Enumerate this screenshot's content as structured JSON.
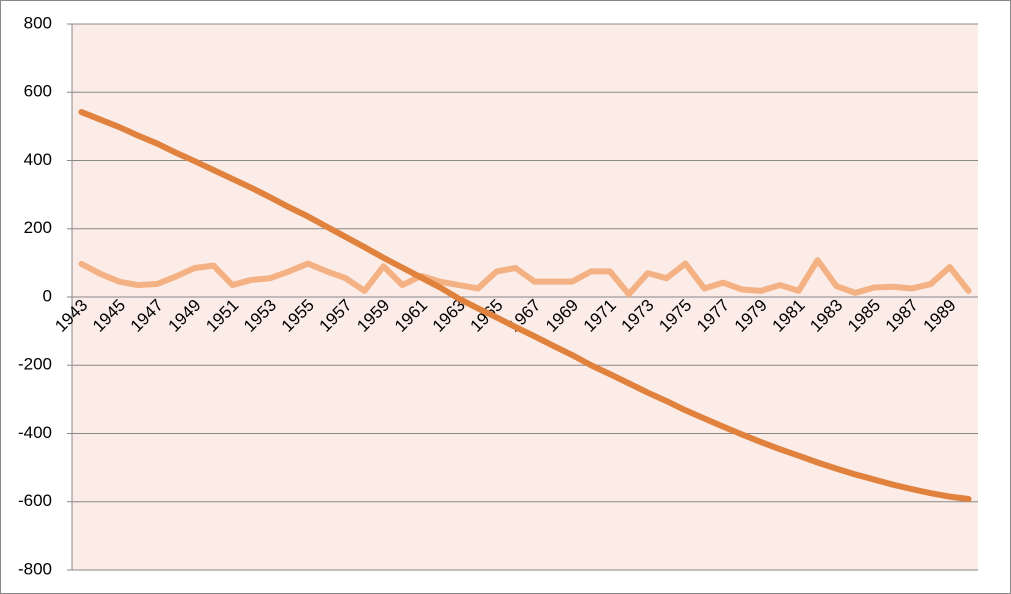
{
  "chart_data": {
    "type": "line",
    "categories": [
      "1943",
      null,
      "1945",
      null,
      "1947",
      null,
      "1949",
      null,
      "1951",
      null,
      "1953",
      null,
      "1955",
      null,
      "1957",
      null,
      "1959",
      null,
      "1961",
      null,
      "1963",
      null,
      "1965",
      null,
      "1967",
      null,
      "1969",
      null,
      "1971",
      null,
      "1973",
      null,
      "1975",
      null,
      "1977",
      null,
      "1979",
      null,
      "1981",
      null,
      "1983",
      null,
      "1985",
      null,
      "1987",
      null,
      "1989",
      null
    ],
    "series": [
      {
        "color": "#e0823d",
        "values": [
          542,
          520,
          498,
          473,
          450,
          423,
          398,
          372,
          346,
          320,
          292,
          263,
          236,
          206,
          176,
          146,
          115,
          86,
          57,
          28,
          -5,
          -33,
          -60,
          -88,
          -115,
          -143,
          -170,
          -200,
          -226,
          -253,
          -280,
          -305,
          -332,
          -356,
          -380,
          -403,
          -425,
          -446,
          -465,
          -485,
          -503,
          -520,
          -535,
          -550,
          -563,
          -575,
          -585,
          -592
        ]
      },
      {
        "color": "#f4b183",
        "values": [
          97,
          68,
          45,
          35,
          38,
          60,
          85,
          92,
          35,
          50,
          55,
          75,
          98,
          75,
          55,
          18,
          90,
          35,
          62,
          45,
          35,
          25,
          75,
          85,
          45,
          45,
          45,
          75,
          75,
          8,
          70,
          55,
          98,
          25,
          42,
          22,
          18,
          35,
          18,
          108,
          32,
          12,
          28,
          30,
          25,
          38,
          88,
          18
        ]
      }
    ],
    "ylim": [
      -800,
      800
    ],
    "yticks": [
      -800,
      -600,
      -400,
      -200,
      0,
      200,
      400,
      600,
      800
    ],
    "grid": true,
    "plot_background": "#fbece7"
  }
}
